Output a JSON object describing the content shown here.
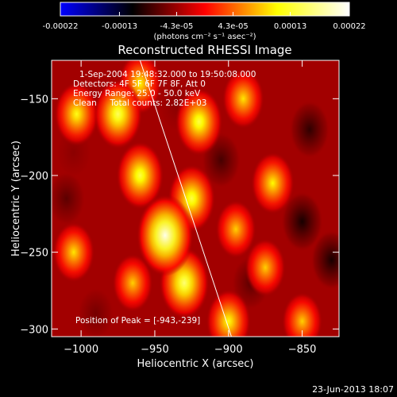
{
  "chart_data": {
    "type": "heatmap",
    "title": "Reconstructed RHESSI Image",
    "xlabel": "Heliocentric X (arcsec)",
    "ylabel": "Heliocentric Y (arcsec)",
    "xlim": [
      -1020,
      -825
    ],
    "ylim": [
      -305,
      -125
    ],
    "x_ticks": [
      -1000,
      -950,
      -900,
      -850
    ],
    "y_ticks": [
      -300,
      -250,
      -200,
      -150
    ],
    "x_tick_labels": [
      "−1000",
      "−950",
      "−900",
      "−850"
    ],
    "y_tick_labels": [
      "−300",
      "−250",
      "−200",
      "−150"
    ],
    "colorbar": {
      "range": [
        -0.00022,
        0.00022
      ],
      "ticks": [
        -0.00022,
        -0.00013,
        -4.3e-05,
        4.3e-05,
        0.00013,
        0.00022
      ],
      "tick_labels": [
        "-0.00022",
        "-0.00013",
        "-4.3e-05",
        "4.3e-05",
        "0.00013",
        "0.00022"
      ],
      "units": "(photons cm⁻² s⁻¹ asec⁻²)",
      "colors": [
        "#0000ff",
        "#000000",
        "#ff0000",
        "#ffff00",
        "#ffffff"
      ]
    },
    "annotations": [
      "1-Sep-2004 19:48:32.000 to 19:50:08.000",
      "Detectors: 4F 5F 6F 7F 8F, Att 0",
      "Energy Range: 25.0 - 50.0 keV",
      "Clean     Total counts: 2.82E+03"
    ],
    "peak_label": "Position of Peak = [-943,-239]",
    "peak": [
      -943,
      -239
    ],
    "limb_line": [
      [
        -960,
        -125
      ],
      [
        -898,
        -305
      ]
    ],
    "sources": [
      {
        "x": -975,
        "y": -160,
        "value": 0.00015
      },
      {
        "x": -960,
        "y": -200,
        "value": 0.00014
      },
      {
        "x": -943,
        "y": -239,
        "value": 0.00021
      },
      {
        "x": -930,
        "y": -270,
        "value": 0.00016
      },
      {
        "x": -1003,
        "y": -160,
        "value": 0.00012
      },
      {
        "x": -1005,
        "y": -250,
        "value": 0.0001
      },
      {
        "x": -965,
        "y": -270,
        "value": 9e-05
      },
      {
        "x": -925,
        "y": -215,
        "value": 0.00014
      },
      {
        "x": -920,
        "y": -165,
        "value": 0.00014
      },
      {
        "x": -960,
        "y": -140,
        "value": 0.00011
      },
      {
        "x": -890,
        "y": -150,
        "value": 0.0001
      },
      {
        "x": -870,
        "y": -205,
        "value": 0.00011
      },
      {
        "x": -895,
        "y": -235,
        "value": 9e-05
      },
      {
        "x": -875,
        "y": -260,
        "value": 9e-05
      },
      {
        "x": -900,
        "y": -295,
        "value": 0.00012
      },
      {
        "x": -850,
        "y": -295,
        "value": 9e-05
      },
      {
        "x": -905,
        "y": -190,
        "value": -8e-05
      },
      {
        "x": -845,
        "y": -170,
        "value": -9e-05
      },
      {
        "x": -850,
        "y": -230,
        "value": -0.0001
      },
      {
        "x": -1010,
        "y": -215,
        "value": -7e-05
      },
      {
        "x": -990,
        "y": -290,
        "value": -6e-05
      },
      {
        "x": -935,
        "y": -155,
        "value": -5e-05
      },
      {
        "x": -885,
        "y": -270,
        "value": -7e-05
      },
      {
        "x": -830,
        "y": -255,
        "value": -0.0001
      },
      {
        "x": -1005,
        "y": -185,
        "value": -5e-05
      },
      {
        "x": -960,
        "y": -295,
        "value": -4e-05
      }
    ],
    "background_value": -4e-05
  },
  "footer": {
    "timestamp": "23-Jun-2013 18:07"
  }
}
